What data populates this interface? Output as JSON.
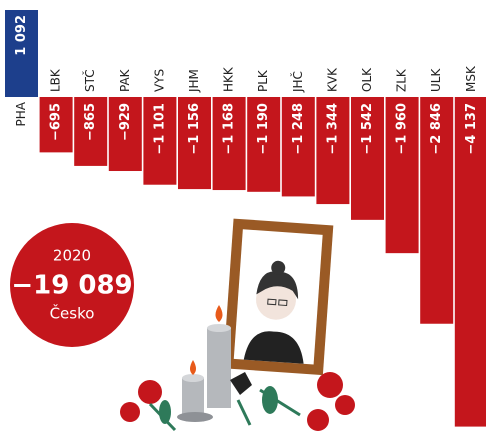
{
  "chart_data": {
    "type": "bar",
    "categories": [
      "PHA",
      "LBK",
      "STČ",
      "PAK",
      "VYS",
      "JHM",
      "HKK",
      "PLK",
      "JHČ",
      "KVK",
      "OLK",
      "ZLK",
      "ULK",
      "MSK"
    ],
    "values": [
      1092,
      -695,
      -865,
      -929,
      -1101,
      -1156,
      -1168,
      -1190,
      -1248,
      -1344,
      -1542,
      -1960,
      -2846,
      -4137
    ],
    "value_labels": [
      "1 092",
      "−695",
      "−865",
      "−929",
      "−1 101",
      "−1 156",
      "−1 168",
      "−1 190",
      "−1 248",
      "−1 344",
      "−1 542",
      "−1 960",
      "−2 846",
      "−4 137"
    ],
    "positive_color": "#1d3f8c",
    "negative_color": "#c4161c",
    "annotations": [
      "2020",
      "−19 089",
      "Česko"
    ]
  }
}
